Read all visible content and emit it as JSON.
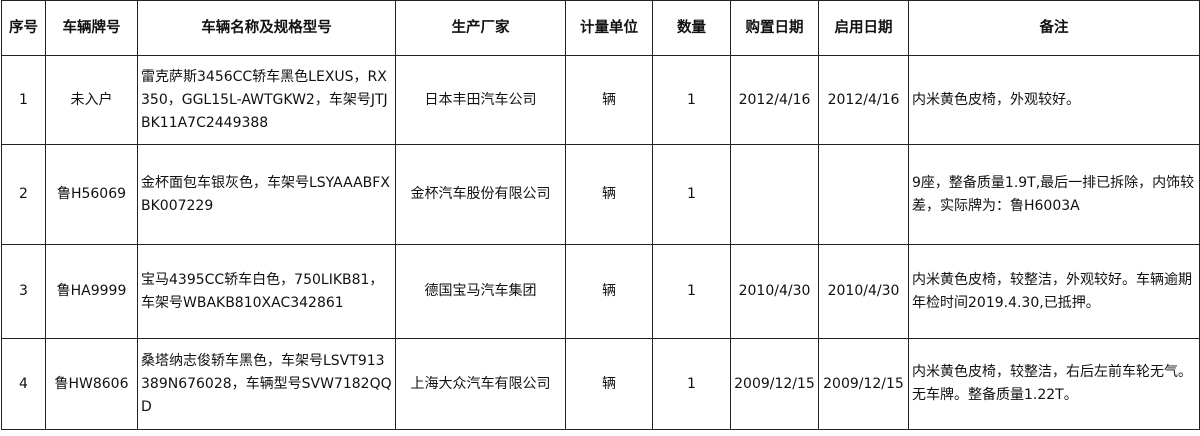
{
  "headers": [
    "序号",
    "车辆牌号",
    "车辆名称及规格型号",
    "生产厂家",
    "计量单位",
    "数量",
    "购置日期",
    "启用日期",
    "备注"
  ],
  "rows": [
    {
      "no": "1",
      "plate": "未入户",
      "name": "雷克萨斯3456CC轿车黑色LEXUS，RX350，GGL15L-AWTGKW2，车架号JTJBK11A7C2449388",
      "maker": "日本丰田汽车公司",
      "unit": "辆",
      "qty": "1",
      "purchase": "2012/4/16",
      "start": "2012/4/16",
      "note": "内米黄色皮椅，外观较好。"
    },
    {
      "no": "2",
      "plate": "鲁H56069",
      "name": "金杯面包车银灰色，车架号LSYAAABFXBK007229",
      "maker": "金杯汽车股份有限公司",
      "unit": "辆",
      "qty": "1",
      "purchase": "",
      "start": "",
      "note": "9座，整备质量1.9T,最后一排已拆除，内饰较差，实际牌为：鲁H6003A"
    },
    {
      "no": "3",
      "plate": "鲁HA9999",
      "name": "宝马4395CC轿车白色，750LIKB81，车架号WBAKB810XAC342861",
      "maker": "德国宝马汽车集团",
      "unit": "辆",
      "qty": "1",
      "purchase": "2010/4/30",
      "start": "2010/4/30",
      "note": "内米黄色皮椅，较整洁，外观较好。车辆逾期年检时间2019.4.30,已抵押。"
    },
    {
      "no": "4",
      "plate": "鲁HW8606",
      "name": "桑塔纳志俊轿车黑色，车架号LSVT913389N676028，车辆型号SVW7182QQD",
      "maker": "上海大众汽车有限公司",
      "unit": "辆",
      "qty": "1",
      "purchase": "2009/12/15",
      "start": "2009/12/15",
      "note": "内米黄色皮椅，较整洁，右后左前车轮无气。无车牌。整备质量1.22T。"
    }
  ]
}
